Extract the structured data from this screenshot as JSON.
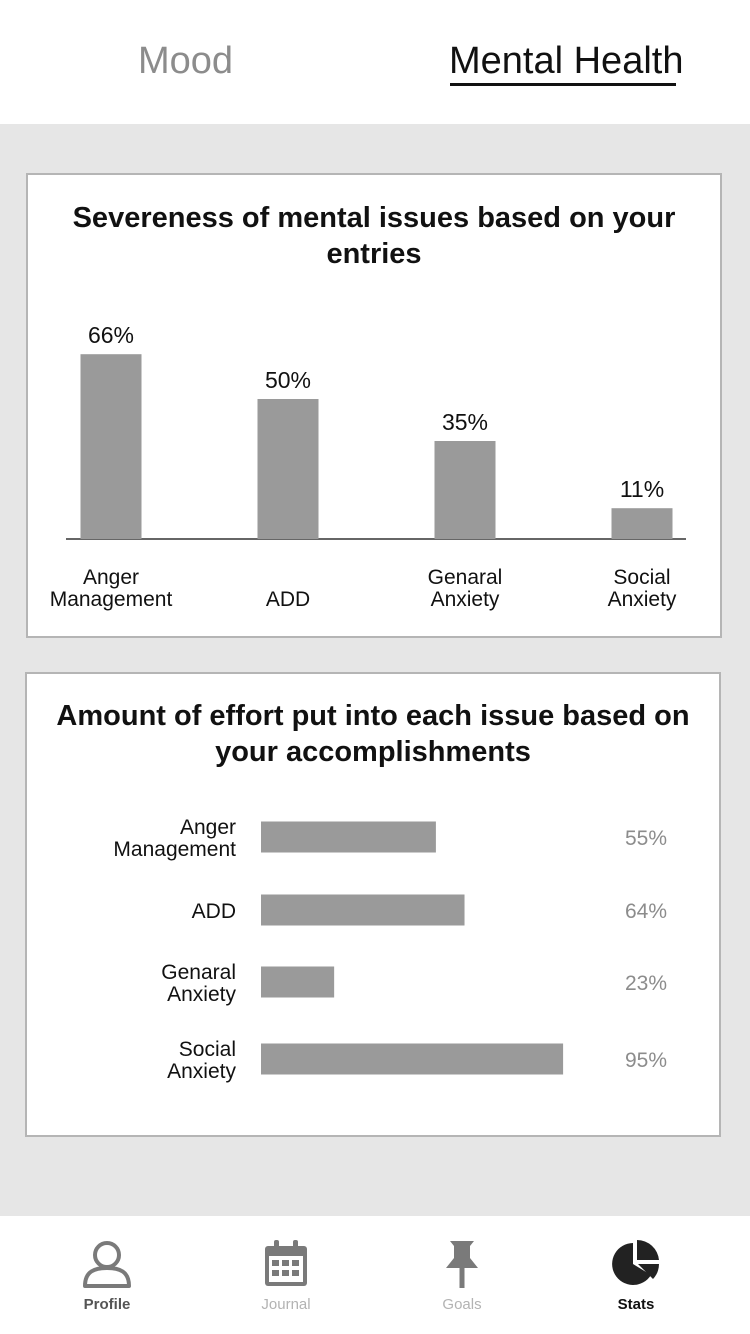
{
  "top_tabs": [
    {
      "label": "Mood",
      "active": false
    },
    {
      "label": "Mental Health",
      "active": true
    }
  ],
  "severity_card": {
    "chart_data": {
      "type": "bar",
      "title": "Severeness of mental issues based on your entries",
      "categories": [
        [
          "Anger",
          "Management"
        ],
        [
          "ADD"
        ],
        [
          "Genaral",
          "Anxiety"
        ],
        [
          "Social",
          "Anxiety"
        ]
      ],
      "values": [
        66,
        50,
        35,
        11
      ],
      "value_labels": [
        "66%",
        "50%",
        "35%",
        "11%"
      ],
      "unit": "%",
      "ylim": [
        0,
        100
      ],
      "bar_color": "#9a9a9a",
      "grid": false,
      "legend": "none"
    }
  },
  "effort_card": {
    "chart_data": {
      "type": "bar",
      "orientation": "horizontal",
      "title": "Amount of effort put into each issue based on your accomplishments",
      "categories": [
        [
          "Anger",
          "Management"
        ],
        [
          "ADD"
        ],
        [
          "Genaral",
          "Anxiety"
        ],
        [
          "Social",
          "Anxiety"
        ]
      ],
      "values": [
        55,
        64,
        23,
        95
      ],
      "value_labels": [
        "55%",
        "64%",
        "23%",
        "95%"
      ],
      "unit": "%",
      "xlim": [
        0,
        100
      ],
      "bar_color": "#9a9a9a",
      "value_label_color": "#8c8c8c",
      "grid": false,
      "legend": "none"
    }
  },
  "nav": {
    "items": [
      {
        "label": "Profile",
        "icon": "person-icon",
        "state": "enabled"
      },
      {
        "label": "Journal",
        "icon": "calendar-icon",
        "state": "dimmed"
      },
      {
        "label": "Goals",
        "icon": "pin-icon",
        "state": "dimmed"
      },
      {
        "label": "Stats",
        "icon": "pie-chart-icon",
        "state": "active"
      }
    ]
  }
}
